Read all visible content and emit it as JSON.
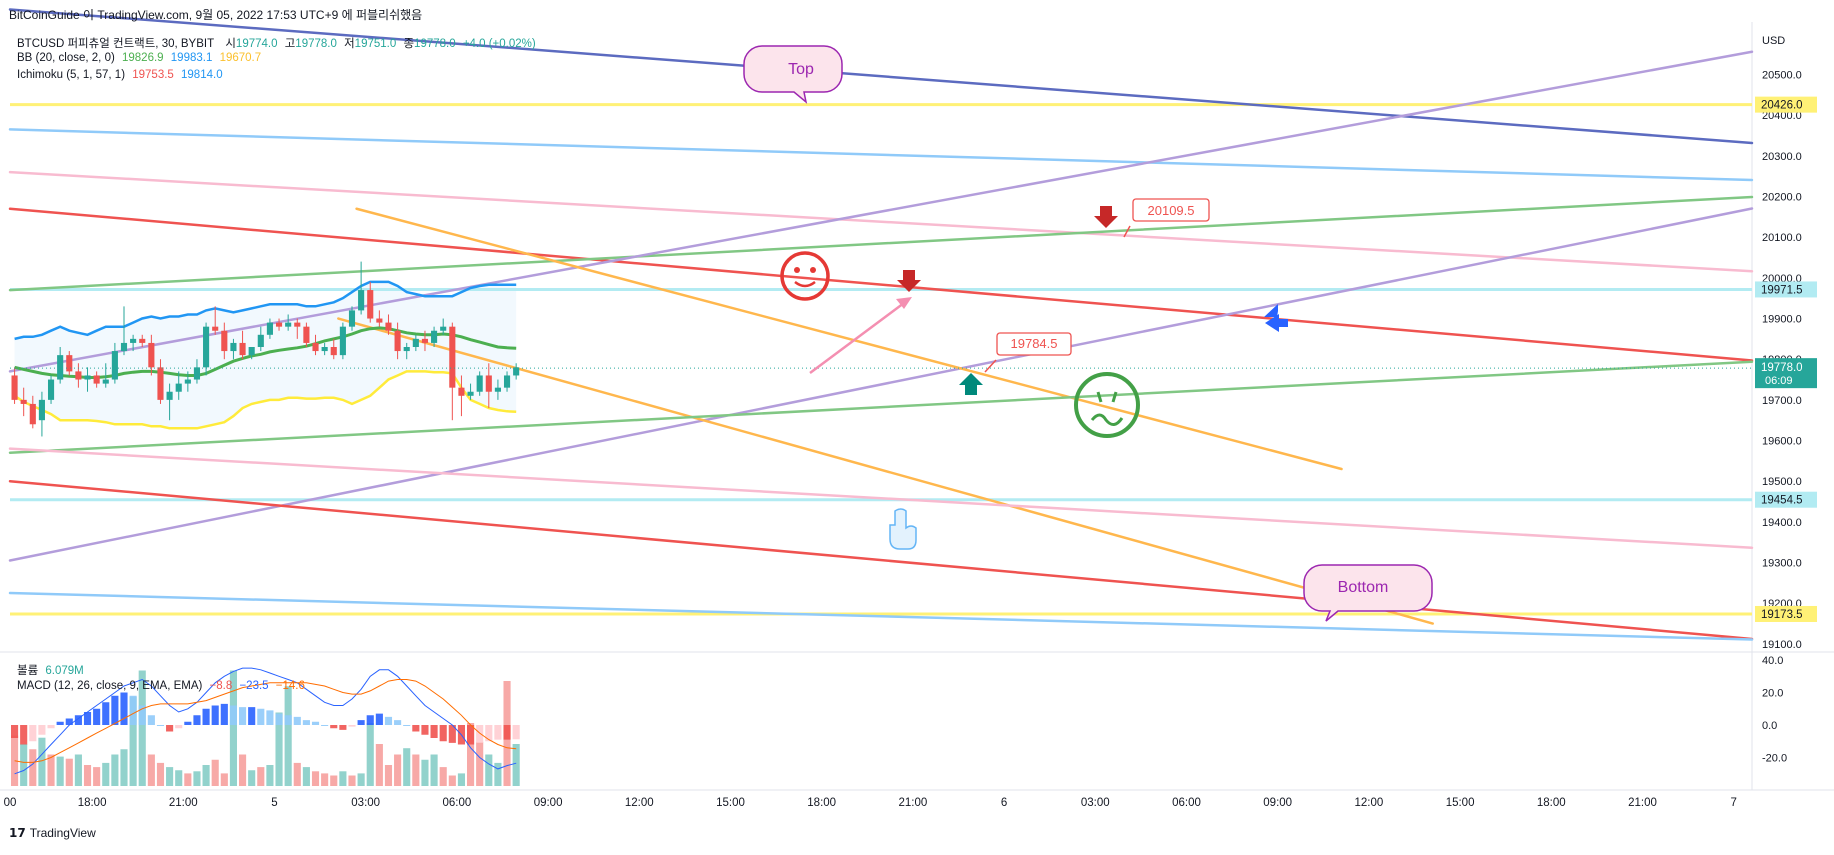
{
  "header": {
    "publish_line": "BitCoinGuide 이 TradingView.com, 9월 05, 2022 17:53 UTC+9 에 퍼블리쉬했음"
  },
  "legend": {
    "main": {
      "title": "BTCUSD 퍼피츄얼 컨트랙트, 30, BYBIT",
      "o_label": "시",
      "o": "19774.0",
      "h_label": "고",
      "h": "19778.0",
      "l_label": "저",
      "l": "19751.0",
      "c_label": "종",
      "c": "19778.0",
      "chg": "+4.0 (+0.02%)"
    },
    "bb": {
      "label": "BB (20, close, 2, 0)",
      "mid": "19826.9",
      "upper": "19983.1",
      "lower": "19670.7"
    },
    "ichimoku": {
      "label": "Ichimoku (5, 1, 57, 1)",
      "v1": "19753.5",
      "v2": "19814.0"
    },
    "volume": {
      "label": "볼륨",
      "value": "6.079M"
    },
    "macd": {
      "label": "MACD (12, 26, close, 9, EMA, EMA)",
      "hist": "−8.8",
      "macd": "−23.5",
      "signal": "−14.6"
    }
  },
  "colors": {
    "up": "#26a69a",
    "down": "#ef5350",
    "bb_mid": "#4caf50",
    "bb_upper": "#2196f3",
    "bb_lower": "#ffeb3b",
    "orange": "#ffb74d",
    "purple": "#b39ddb",
    "navy": "#5c6bc0",
    "light_blue": "#90caf9",
    "pink": "#f8bbd0",
    "red_line": "#ef5350",
    "green_line": "#81c784",
    "yellow_line": "#ffeb3b",
    "cyan_line": "#b2ebf2",
    "macd_line": "#2962ff",
    "signal_line": "#ff6d00"
  },
  "chart_data": [
    {
      "type": "candlestick",
      "title": "BTCUSD 퍼피츄얼 컨트랙트, 30, BYBIT",
      "y_axis_unit": "USD",
      "ylim": [
        19080,
        20580
      ],
      "y_ticks": [
        19100,
        19200,
        19300,
        19400,
        19500,
        19600,
        19700,
        19800,
        19900,
        20000,
        20100,
        20200,
        20300,
        20400,
        20500
      ],
      "x_ticks": [
        "00",
        "18:00",
        "21:00",
        "5",
        "03:00",
        "06:00",
        "09:00",
        "12:00",
        "15:00",
        "18:00",
        "21:00",
        "6",
        "03:00",
        "06:00",
        "09:00",
        "12:00",
        "15:00",
        "18:00",
        "21:00",
        "7"
      ],
      "x_tick_bars": [
        0,
        9,
        19,
        29,
        39,
        49,
        59,
        69,
        79,
        89,
        99,
        109,
        119,
        129,
        139,
        149,
        159,
        169,
        179,
        189
      ],
      "candles": [
        [
          19760,
          19780,
          19690,
          19700
        ],
        [
          19700,
          19730,
          19660,
          19690
        ],
        [
          19690,
          19710,
          19630,
          19640
        ],
        [
          19650,
          19720,
          19610,
          19700
        ],
        [
          19700,
          19760,
          19690,
          19750
        ],
        [
          19750,
          19830,
          19740,
          19810
        ],
        [
          19810,
          19820,
          19760,
          19770
        ],
        [
          19770,
          19790,
          19730,
          19750
        ],
        [
          19750,
          19780,
          19720,
          19760
        ],
        [
          19760,
          19770,
          19730,
          19740
        ],
        [
          19740,
          19790,
          19730,
          19750
        ],
        [
          19750,
          19840,
          19740,
          19820
        ],
        [
          19820,
          19930,
          19810,
          19840
        ],
        [
          19840,
          19860,
          19820,
          19850
        ],
        [
          19850,
          19860,
          19830,
          19840
        ],
        [
          19840,
          19860,
          19760,
          19780
        ],
        [
          19780,
          19800,
          19690,
          19700
        ],
        [
          19700,
          19740,
          19650,
          19720
        ],
        [
          19720,
          19770,
          19700,
          19740
        ],
        [
          19740,
          19770,
          19720,
          19750
        ],
        [
          19750,
          19800,
          19740,
          19780
        ],
        [
          19780,
          19890,
          19760,
          19880
        ],
        [
          19880,
          19930,
          19860,
          19870
        ],
        [
          19870,
          19890,
          19800,
          19820
        ],
        [
          19820,
          19850,
          19800,
          19840
        ],
        [
          19840,
          19870,
          19800,
          19810
        ],
        [
          19810,
          19830,
          19800,
          19830
        ],
        [
          19830,
          19880,
          19820,
          19860
        ],
        [
          19860,
          19900,
          19850,
          19890
        ],
        [
          19890,
          19900,
          19870,
          19880
        ],
        [
          19880,
          19910,
          19870,
          19890
        ],
        [
          19890,
          19900,
          19850,
          19880
        ],
        [
          19880,
          19890,
          19830,
          19840
        ],
        [
          19840,
          19860,
          19810,
          19820
        ],
        [
          19820,
          19840,
          19810,
          19830
        ],
        [
          19830,
          19850,
          19800,
          19810
        ],
        [
          19810,
          19890,
          19800,
          19880
        ],
        [
          19880,
          19930,
          19870,
          19920
        ],
        [
          19920,
          20040,
          19910,
          19970
        ],
        [
          19970,
          19990,
          19890,
          19900
        ],
        [
          19900,
          19920,
          19880,
          19890
        ],
        [
          19890,
          19910,
          19860,
          19870
        ],
        [
          19870,
          19890,
          19800,
          19820
        ],
        [
          19820,
          19840,
          19800,
          19830
        ],
        [
          19830,
          19860,
          19820,
          19850
        ],
        [
          19850,
          19870,
          19820,
          19840
        ],
        [
          19840,
          19880,
          19830,
          19870
        ],
        [
          19870,
          19900,
          19860,
          19880
        ],
        [
          19880,
          19890,
          19650,
          19730
        ],
        [
          19730,
          19760,
          19660,
          19710
        ],
        [
          19710,
          19740,
          19700,
          19720
        ],
        [
          19720,
          19770,
          19710,
          19760
        ],
        [
          19760,
          19790,
          19680,
          19720
        ],
        [
          19720,
          19750,
          19700,
          19730
        ],
        [
          19730,
          19770,
          19720,
          19760
        ],
        [
          19760,
          19790,
          19750,
          19780
        ]
      ],
      "bollinger": {
        "upper": [
          19850,
          19855,
          19855,
          19860,
          19870,
          19880,
          19870,
          19865,
          19860,
          19870,
          19880,
          19880,
          19880,
          19890,
          19900,
          19905,
          19900,
          19905,
          19905,
          19910,
          19910,
          19920,
          19925,
          19920,
          19915,
          19920,
          19925,
          19930,
          19935,
          19935,
          19935,
          19935,
          19930,
          19930,
          19935,
          19940,
          19950,
          19965,
          19980,
          19990,
          19990,
          19990,
          19980,
          19965,
          19960,
          19955,
          19955,
          19955,
          19955,
          19965,
          19975,
          19980,
          19983,
          19983,
          19983,
          19983
        ],
        "middle": [
          19780,
          19775,
          19770,
          19765,
          19762,
          19760,
          19758,
          19757,
          19755,
          19755,
          19757,
          19760,
          19765,
          19768,
          19770,
          19770,
          19768,
          19765,
          19762,
          19760,
          19760,
          19765,
          19775,
          19785,
          19795,
          19802,
          19808,
          19812,
          19818,
          19822,
          19825,
          19828,
          19832,
          19838,
          19845,
          19850,
          19855,
          19862,
          19870,
          19875,
          19877,
          19875,
          19870,
          19865,
          19862,
          19860,
          19860,
          19862,
          19860,
          19855,
          19848,
          19842,
          19836,
          19830,
          19828,
          19827
        ],
        "lower": [
          19710,
          19695,
          19685,
          19675,
          19665,
          19650,
          19650,
          19650,
          19650,
          19648,
          19645,
          19640,
          19640,
          19640,
          19640,
          19635,
          19635,
          19630,
          19630,
          19630,
          19630,
          19635,
          19640,
          19645,
          19660,
          19680,
          19690,
          19695,
          19700,
          19700,
          19705,
          19705,
          19703,
          19703,
          19705,
          19705,
          19700,
          19690,
          19700,
          19710,
          19730,
          19750,
          19760,
          19770,
          19770,
          19770,
          19768,
          19768,
          19765,
          19730,
          19700,
          19690,
          19680,
          19675,
          19672,
          19671
        ]
      },
      "trendlines": [
        {
          "name": "navy",
          "from": [
            0,
            20660
          ],
          "to": [
            192,
            20330
          ]
        },
        {
          "name": "light_blue",
          "from": [
            0,
            20365
          ],
          "to": [
            192,
            20240
          ]
        },
        {
          "name": "pink",
          "from": [
            0,
            20260
          ],
          "to": [
            192,
            20015
          ]
        },
        {
          "name": "red",
          "from": [
            0,
            20170
          ],
          "to": [
            192,
            19795
          ]
        },
        {
          "name": "green",
          "from": [
            0,
            19970
          ],
          "to": [
            192,
            20200
          ]
        },
        {
          "name": "purple",
          "from": [
            0,
            19770
          ],
          "to": [
            192,
            20560
          ]
        },
        {
          "name": "purple",
          "from": [
            0,
            19305
          ],
          "to": [
            192,
            20175
          ]
        },
        {
          "name": "orange",
          "from": [
            38,
            20170
          ],
          "to": [
            146,
            19530
          ]
        },
        {
          "name": "orange",
          "from": [
            36,
            19900
          ],
          "to": [
            156,
            19150
          ]
        },
        {
          "name": "green",
          "from": [
            0,
            19570
          ],
          "to": [
            192,
            19795
          ]
        },
        {
          "name": "pink",
          "from": [
            0,
            19580
          ],
          "to": [
            192,
            19335
          ]
        },
        {
          "name": "red",
          "from": [
            0,
            19500
          ],
          "to": [
            192,
            19110
          ]
        },
        {
          "name": "light_blue",
          "from": [
            0,
            19225
          ],
          "to": [
            192,
            19110
          ]
        }
      ],
      "horizontal_levels": [
        {
          "value": 20426.0,
          "label": "20426.0",
          "color": "yellow"
        },
        {
          "value": 19971.5,
          "label": "19971.5",
          "color": "cyan"
        },
        {
          "value": 19454.5,
          "label": "19454.5",
          "color": "cyan"
        },
        {
          "value": 19173.5,
          "label": "19173.5",
          "color": "yellow"
        }
      ],
      "last_price": {
        "value": "19778.0",
        "countdown": "06:09"
      },
      "annotations": {
        "top": "Top",
        "bottom": "Bottom",
        "target_high": "20109.5",
        "target_mid": "19784.5"
      }
    },
    {
      "type": "bar",
      "title": "볼륨",
      "volume": [
        48,
        40,
        35,
        46,
        30,
        28,
        26,
        30,
        20,
        18,
        22,
        30,
        35,
        85,
        110,
        30,
        22,
        18,
        15,
        12,
        14,
        20,
        25,
        12,
        110,
        30,
        15,
        18,
        20,
        70,
        95,
        22,
        18,
        14,
        12,
        10,
        14,
        10,
        12,
        60,
        40,
        20,
        30,
        36,
        30,
        25,
        30,
        18,
        10,
        12,
        60,
        42,
        30,
        22,
        100,
        40
      ],
      "volume_up": [
        false,
        true,
        false,
        true,
        false,
        true,
        false,
        true,
        false,
        false,
        true,
        true,
        true,
        true,
        true,
        false,
        false,
        true,
        true,
        false,
        true,
        true,
        false,
        false,
        true,
        false,
        true,
        false,
        true,
        true,
        true,
        false,
        true,
        false,
        false,
        false,
        true,
        false,
        true,
        true,
        false,
        false,
        false,
        true,
        false,
        true,
        true,
        false,
        false,
        true,
        false,
        false,
        true,
        true,
        false,
        true
      ]
    },
    {
      "type": "line",
      "title": "MACD (12, 26, close, 9, EMA, EMA)",
      "ylim": [
        -40,
        40
      ],
      "y_ticks": [
        40.0,
        20.0,
        0.0,
        -20.0
      ],
      "hist": [
        -8,
        -12,
        -10,
        -6,
        -2,
        2,
        4,
        6,
        8,
        10,
        14,
        18,
        20,
        18,
        12,
        6,
        0,
        -4,
        -2,
        2,
        6,
        10,
        12,
        13,
        12,
        11,
        11,
        10,
        9,
        7,
        6,
        5,
        3,
        2,
        0,
        -2,
        -3,
        -1,
        3,
        6,
        7,
        5,
        3,
        0,
        -4,
        -6,
        -8,
        -10,
        -11,
        -12,
        -12,
        -11,
        -10,
        -9,
        -9,
        -8.8
      ],
      "macd": [
        -30,
        -28,
        -24,
        -18,
        -12,
        -6,
        0,
        4,
        8,
        12,
        16,
        20,
        24,
        26,
        28,
        24,
        18,
        12,
        8,
        10,
        14,
        20,
        26,
        30,
        33,
        35,
        35,
        34,
        32,
        30,
        28,
        26,
        22,
        18,
        14,
        12,
        12,
        16,
        22,
        30,
        34,
        34,
        30,
        24,
        18,
        12,
        8,
        4,
        0,
        -6,
        -14,
        -20,
        -24,
        -27,
        -25,
        -23.5
      ],
      "signal": [
        -22,
        -23,
        -23,
        -22,
        -20,
        -17,
        -14,
        -11,
        -8,
        -5,
        -2,
        1,
        4,
        7,
        10,
        12,
        13,
        13,
        13,
        13,
        14,
        15,
        17,
        19,
        21,
        23,
        24,
        25,
        26,
        26,
        26,
        26,
        26,
        25,
        24,
        22,
        20,
        19,
        19,
        21,
        24,
        27,
        28,
        28,
        27,
        24,
        20,
        16,
        11,
        6,
        0,
        -5,
        -9,
        -12,
        -14,
        -14.6
      ]
    }
  ]
}
